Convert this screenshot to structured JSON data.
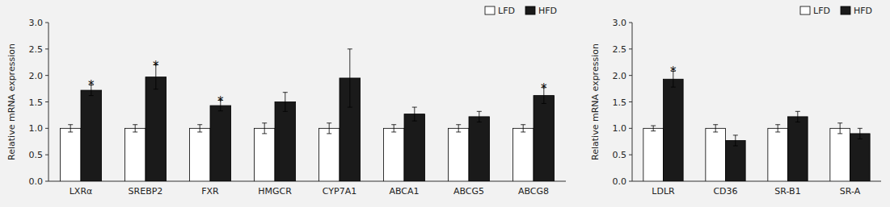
{
  "chart_data": [
    {
      "type": "bar",
      "categories": [
        "LXRα",
        "SREBP2",
        "FXR",
        "HMGCR",
        "CYP7A1",
        "ABCA1",
        "ABCG5",
        "ABCG8"
      ],
      "series": [
        {
          "name": "LFD",
          "color": "#ffffff",
          "values": [
            1.0,
            1.0,
            1.0,
            1.0,
            1.0,
            1.0,
            1.0,
            1.0
          ],
          "errors": [
            0.07,
            0.07,
            0.07,
            0.1,
            0.1,
            0.07,
            0.07,
            0.07
          ]
        },
        {
          "name": "HFD",
          "color": "#1a1a1a",
          "values": [
            1.72,
            1.97,
            1.43,
            1.5,
            1.95,
            1.27,
            1.22,
            1.62
          ],
          "errors": [
            0.1,
            0.23,
            0.1,
            0.18,
            0.55,
            0.13,
            0.1,
            0.15
          ],
          "annotations": [
            "*",
            "*",
            "*",
            null,
            null,
            null,
            null,
            "*"
          ]
        }
      ],
      "ylabel": "Relative mRNA expression",
      "ylim": [
        0,
        3.0
      ],
      "yticks": [
        {
          "value": 0,
          "label": "0.0"
        },
        0.5,
        {
          "value": 1.0,
          "label": "1.0"
        },
        1.5,
        {
          "value": 2.0,
          "label": "2.0"
        },
        2.5,
        {
          "value": 3.0,
          "label": "3.0"
        }
      ],
      "legend": "upper right"
    },
    {
      "type": "bar",
      "categories": [
        "LDLR",
        "CD36",
        "SR-B1",
        "SR-A"
      ],
      "series": [
        {
          "name": "LFD",
          "color": "#ffffff",
          "values": [
            1.0,
            1.0,
            1.0,
            1.0
          ],
          "errors": [
            0.05,
            0.07,
            0.07,
            0.1
          ]
        },
        {
          "name": "HFD",
          "color": "#1a1a1a",
          "values": [
            1.93,
            0.77,
            1.22,
            0.9
          ],
          "errors": [
            0.15,
            0.1,
            0.1,
            0.1
          ],
          "annotations": [
            "*",
            null,
            null,
            null
          ]
        }
      ],
      "ylabel": "Relative mRNA expression",
      "ylim": [
        0,
        3.0
      ],
      "yticks": [
        {
          "value": 0,
          "label": "0.0"
        },
        0.5,
        {
          "value": 1.0,
          "label": "1.0"
        },
        1.5,
        {
          "value": 2.0,
          "label": "2.0"
        },
        2.5,
        {
          "value": 3.0,
          "label": "3.0"
        }
      ],
      "legend": "upper right"
    }
  ]
}
